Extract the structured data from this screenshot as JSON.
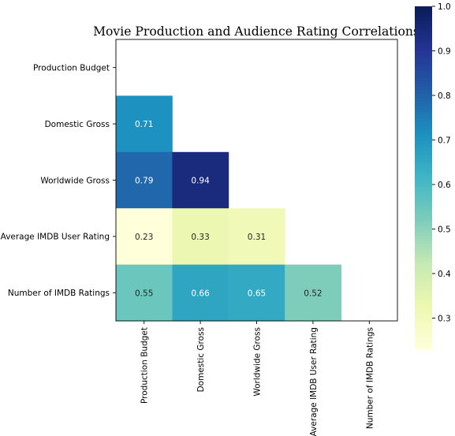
{
  "chart_data": {
    "type": "heatmap",
    "title": "Movie Production and Audience Rating Correlations",
    "variables": [
      "Production Budget",
      "Domestic Gross",
      "Worldwide Gross",
      "Average IMDB User Rating",
      "Number of IMDB Ratings"
    ],
    "mask": "upper-triangle-including-diagonal",
    "cells": [
      {
        "row": "Domestic Gross",
        "col": "Production Budget",
        "value": 0.71,
        "label": "0.71"
      },
      {
        "row": "Worldwide Gross",
        "col": "Production Budget",
        "value": 0.79,
        "label": "0.79"
      },
      {
        "row": "Worldwide Gross",
        "col": "Domestic Gross",
        "value": 0.94,
        "label": "0.94"
      },
      {
        "row": "Average IMDB User Rating",
        "col": "Production Budget",
        "value": 0.23,
        "label": "0.23"
      },
      {
        "row": "Average IMDB User Rating",
        "col": "Domestic Gross",
        "value": 0.33,
        "label": "0.33"
      },
      {
        "row": "Average IMDB User Rating",
        "col": "Worldwide Gross",
        "value": 0.31,
        "label": "0.31"
      },
      {
        "row": "Number of IMDB Ratings",
        "col": "Production Budget",
        "value": 0.55,
        "label": "0.55"
      },
      {
        "row": "Number of IMDB Ratings",
        "col": "Domestic Gross",
        "value": 0.66,
        "label": "0.66"
      },
      {
        "row": "Number of IMDB Ratings",
        "col": "Worldwide Gross",
        "value": 0.65,
        "label": "0.65"
      },
      {
        "row": "Number of IMDB Ratings",
        "col": "Average IMDB User Rating",
        "value": 0.52,
        "label": "0.52"
      }
    ],
    "colorbar": {
      "colormap": "YlGnBu",
      "range": [
        0.23,
        1.0
      ],
      "ticks": [
        "0.3",
        "0.4",
        "0.5",
        "0.6",
        "0.7",
        "0.8",
        "0.9",
        "1.0"
      ]
    },
    "annotation_colors": {
      "light_text": "#ffffff",
      "dark_text": "#262626"
    },
    "frame_color": "#000000",
    "tick_color": "#000000"
  }
}
